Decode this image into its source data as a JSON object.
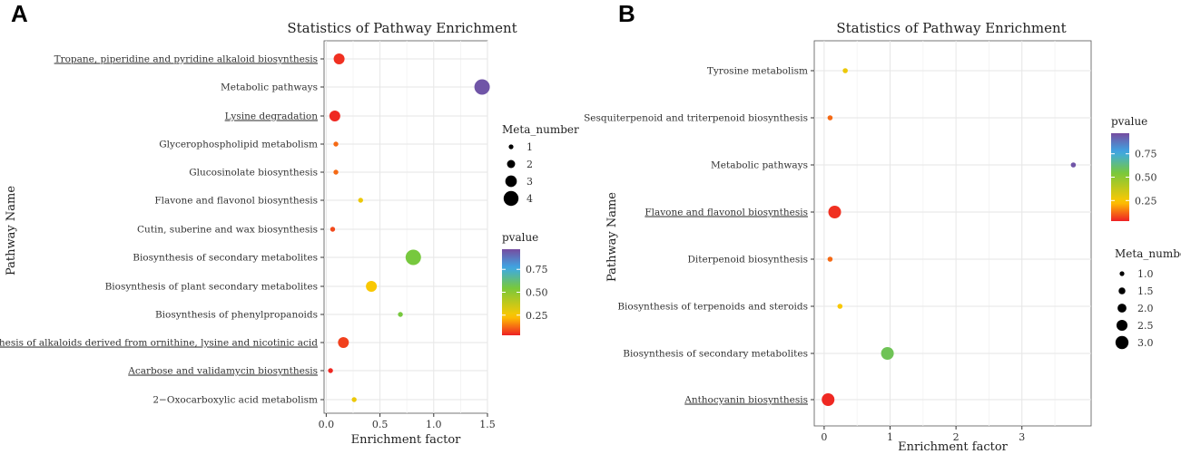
{
  "chart_data": [
    {
      "panel_label": "A",
      "type": "scatter",
      "title": "Statistics of Pathway Enrichment",
      "xlabel": "Enrichment factor",
      "ylabel": "Pathway Name",
      "xlim": [
        -0.02,
        1.5
      ],
      "xticks": [
        0.0,
        0.5,
        1.0,
        1.5
      ],
      "xtick_labels": [
        "0.0",
        "0.5",
        "1.0",
        "1.5"
      ],
      "categories": [
        "Tropane, piperidine and pyridine alkaloid biosynthesis",
        "Metabolic pathways",
        "Lysine degradation",
        "Glycerophospholipid metabolism",
        "Glucosinolate biosynthesis",
        "Flavone and flavonol biosynthesis",
        "Cutin, suberine and wax biosynthesis",
        "Biosynthesis of secondary metabolites",
        "Biosynthesis of plant secondary metabolites",
        "Biosynthesis of phenylpropanoids",
        "Biosynthesis of alkaloids derived from ornithine, lysine and nicotinic acid",
        "Acarbose and validamycin biosynthesis",
        "2−Oxocarboxylic acid metabolism"
      ],
      "underlined": [
        true,
        false,
        true,
        false,
        false,
        false,
        false,
        false,
        false,
        false,
        true,
        true,
        false
      ],
      "points": [
        {
          "x": 0.12,
          "meta_number": 3,
          "pvalue": 0.05
        },
        {
          "x": 1.45,
          "meta_number": 4,
          "pvalue": 0.95
        },
        {
          "x": 0.08,
          "meta_number": 3,
          "pvalue": 0.04
        },
        {
          "x": 0.09,
          "meta_number": 1,
          "pvalue": 0.12
        },
        {
          "x": 0.09,
          "meta_number": 1,
          "pvalue": 0.12
        },
        {
          "x": 0.32,
          "meta_number": 1,
          "pvalue": 0.28
        },
        {
          "x": 0.06,
          "meta_number": 1,
          "pvalue": 0.08
        },
        {
          "x": 0.81,
          "meta_number": 4,
          "pvalue": 0.55
        },
        {
          "x": 0.42,
          "meta_number": 3,
          "pvalue": 0.25
        },
        {
          "x": 0.69,
          "meta_number": 1,
          "pvalue": 0.55
        },
        {
          "x": 0.16,
          "meta_number": 3,
          "pvalue": 0.07
        },
        {
          "x": 0.04,
          "meta_number": 1,
          "pvalue": 0.04
        },
        {
          "x": 0.26,
          "meta_number": 1,
          "pvalue": 0.28
        }
      ],
      "size_legend": {
        "title": "Meta_number",
        "values": [
          1,
          2,
          3,
          4
        ],
        "labels": [
          "1",
          "2",
          "3",
          "4"
        ]
      },
      "color_legend": {
        "title": "pvalue",
        "range": [
          0.03,
          0.97
        ],
        "ticks": [
          0.25,
          0.5,
          0.75
        ],
        "tick_labels": [
          "0.25",
          "0.50",
          "0.75"
        ]
      }
    },
    {
      "panel_label": "B",
      "type": "scatter",
      "title": "Statistics of Pathway Enrichment",
      "xlabel": "Enrichment factor",
      "ylabel": "Pathway Name",
      "xlim": [
        -0.15,
        4.05
      ],
      "xticks": [
        0,
        1,
        2,
        3
      ],
      "xtick_labels": [
        "0",
        "1",
        "2",
        "3"
      ],
      "categories": [
        "Tyrosine metabolism",
        "Sesquiterpenoid and triterpenoid biosynthesis",
        "Metabolic pathways",
        "Flavone and flavonol biosynthesis",
        "Diterpenoid biosynthesis",
        "Biosynthesis of terpenoids and steroids",
        "Biosynthesis of secondary metabolites",
        "Anthocyanin biosynthesis"
      ],
      "underlined": [
        false,
        false,
        false,
        true,
        false,
        false,
        false,
        true
      ],
      "points": [
        {
          "x": 0.32,
          "meta_number": 1,
          "pvalue": 0.28
        },
        {
          "x": 0.09,
          "meta_number": 1,
          "pvalue": 0.12
        },
        {
          "x": 3.78,
          "meta_number": 1,
          "pvalue": 0.95
        },
        {
          "x": 0.16,
          "meta_number": 3,
          "pvalue": 0.05
        },
        {
          "x": 0.09,
          "meta_number": 1,
          "pvalue": 0.12
        },
        {
          "x": 0.24,
          "meta_number": 1,
          "pvalue": 0.25
        },
        {
          "x": 0.96,
          "meta_number": 3,
          "pvalue": 0.58
        },
        {
          "x": 0.06,
          "meta_number": 3,
          "pvalue": 0.04
        }
      ],
      "size_legend": {
        "title": "Meta_number",
        "values": [
          1.0,
          1.5,
          2.0,
          2.5,
          3.0
        ],
        "labels": [
          "1.0",
          "1.5",
          "2.0",
          "2.5",
          "3.0"
        ]
      },
      "color_legend": {
        "title": "pvalue",
        "range": [
          0.03,
          0.97
        ],
        "ticks": [
          0.25,
          0.5,
          0.75
        ],
        "tick_labels": [
          "0.25",
          "0.50",
          "0.75"
        ]
      }
    }
  ]
}
